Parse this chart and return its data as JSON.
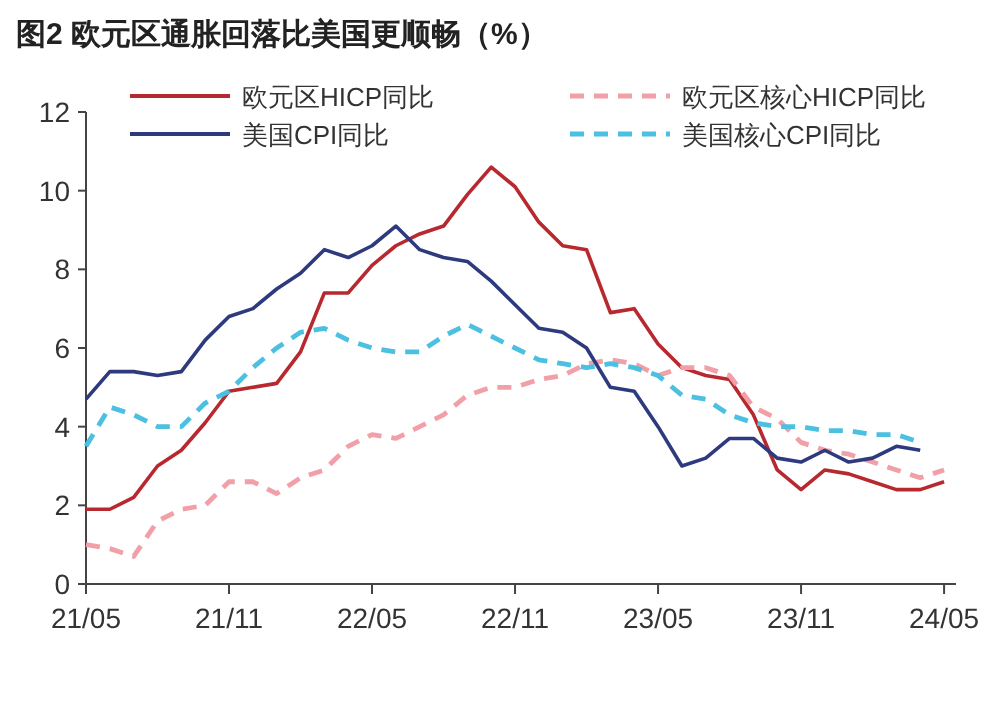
{
  "chart_data": {
    "type": "line",
    "title": "图2  欧元区通胀回落比美国更顺畅（%）",
    "categories": [
      "21/05",
      null,
      null,
      null,
      null,
      null,
      "21/11",
      null,
      null,
      null,
      null,
      null,
      "22/05",
      null,
      null,
      null,
      null,
      null,
      "22/11",
      null,
      null,
      null,
      null,
      null,
      "23/05",
      null,
      null,
      null,
      null,
      null,
      "23/11",
      null,
      null,
      null,
      null,
      null,
      "24/05"
    ],
    "series": [
      {
        "name": "欧元区HICP同比",
        "color": "#b8282f",
        "line_style": "solid",
        "values": [
          1.9,
          1.9,
          2.2,
          3.0,
          3.4,
          4.1,
          4.9,
          5.0,
          5.1,
          5.9,
          7.4,
          7.4,
          8.1,
          8.6,
          8.9,
          9.1,
          9.9,
          10.6,
          10.1,
          9.2,
          8.6,
          8.5,
          6.9,
          7.0,
          6.1,
          5.5,
          5.3,
          5.2,
          4.3,
          2.9,
          2.4,
          2.9,
          2.8,
          2.6,
          2.4,
          2.4,
          2.6
        ]
      },
      {
        "name": "欧元区核心HICP同比",
        "color": "#f2a0a8",
        "line_style": "dashed",
        "values": [
          1.0,
          0.9,
          0.7,
          1.6,
          1.9,
          2.0,
          2.6,
          2.6,
          2.3,
          2.7,
          2.9,
          3.5,
          3.8,
          3.7,
          4.0,
          4.3,
          4.8,
          5.0,
          5.0,
          5.2,
          5.3,
          5.6,
          5.7,
          5.6,
          5.3,
          5.5,
          5.5,
          5.3,
          4.5,
          4.2,
          3.6,
          3.4,
          3.3,
          3.1,
          2.9,
          2.7,
          2.9
        ]
      },
      {
        "name": "美国CPI同比",
        "color": "#2e3a7e",
        "line_style": "solid",
        "values": [
          4.7,
          5.4,
          5.4,
          5.3,
          5.4,
          6.2,
          6.8,
          7.0,
          7.5,
          7.9,
          8.5,
          8.3,
          8.6,
          9.1,
          8.5,
          8.3,
          8.2,
          7.7,
          7.1,
          6.5,
          6.4,
          6.0,
          5.0,
          4.9,
          4.0,
          3.0,
          3.2,
          3.7,
          3.7,
          3.2,
          3.1,
          3.4,
          3.1,
          3.2,
          3.5,
          3.4,
          null
        ]
      },
      {
        "name": "美国核心CPI同比",
        "color": "#4cc0e0",
        "line_style": "dashed",
        "values": [
          3.5,
          4.5,
          4.3,
          4.0,
          4.0,
          4.6,
          4.9,
          5.5,
          6.0,
          6.4,
          6.5,
          6.2,
          6.0,
          5.9,
          5.9,
          6.3,
          6.6,
          6.3,
          6.0,
          5.7,
          5.6,
          5.5,
          5.6,
          5.5,
          5.3,
          4.8,
          4.7,
          4.3,
          4.1,
          4.0,
          4.0,
          3.9,
          3.9,
          3.8,
          3.8,
          3.6,
          null
        ]
      }
    ],
    "ylim": [
      0,
      12
    ],
    "yticks": [
      0,
      2,
      4,
      6,
      8,
      10,
      12
    ],
    "legend": "top"
  }
}
